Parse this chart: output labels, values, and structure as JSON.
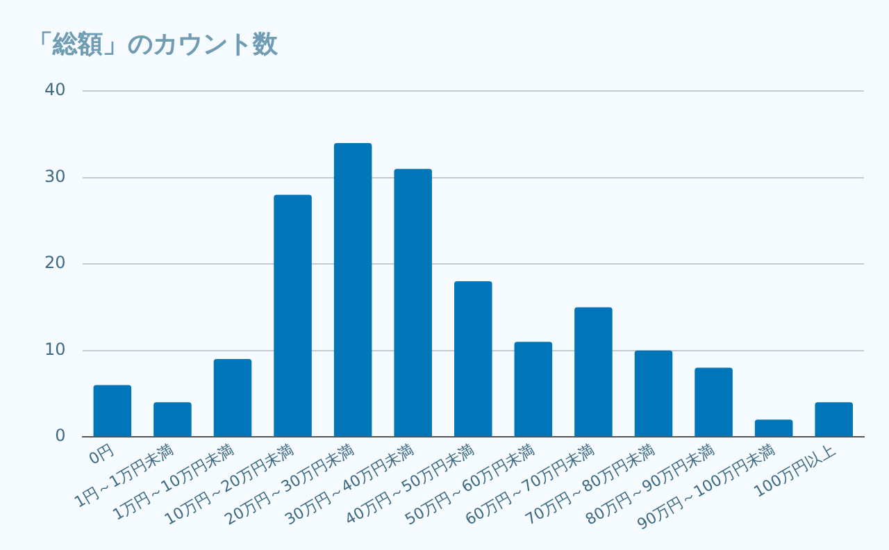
{
  "chart_data": {
    "type": "bar",
    "title": "「総額」のカウント数",
    "categories": [
      "0円",
      "1円～1万円未満",
      "1万円～10万円未満",
      "10万円～20万円未満",
      "20万円～30万円未満",
      "30万円～40万円未満",
      "40万円～50万円未満",
      "50万円～60万円未満",
      "60万円～70万円未満",
      "70万円～80万円未満",
      "80万円～90万円未満",
      "90万円～100万円未満",
      "100万円以上"
    ],
    "values": [
      6,
      4,
      9,
      28,
      34,
      31,
      18,
      11,
      15,
      10,
      8,
      2,
      4
    ],
    "color": "#0075b8",
    "ylim": [
      0,
      40
    ],
    "yticks": [
      0,
      10,
      20,
      30,
      40
    ],
    "grid": "y",
    "legend": false
  }
}
